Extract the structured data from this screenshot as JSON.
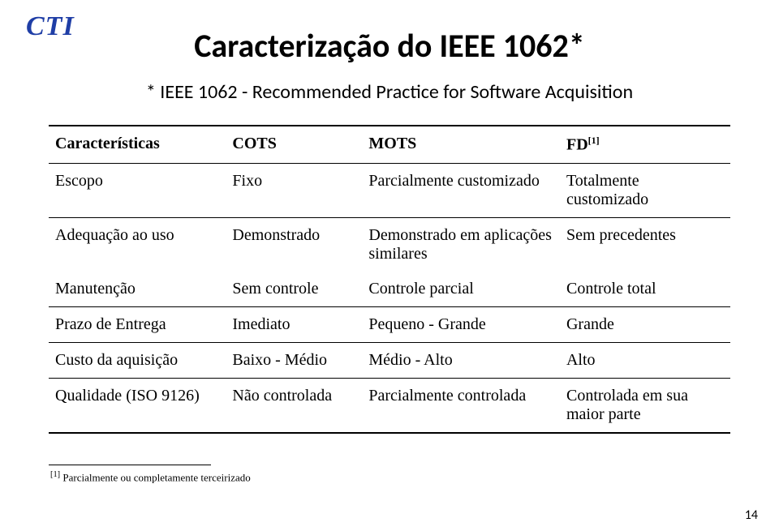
{
  "logo": "CTI",
  "title": "Caracterização do IEEE 1062*",
  "subtitle": "* IEEE 1062 - Recommended Practice for Software Acquisition",
  "table": {
    "columns": [
      "Características",
      "COTS",
      "MOTS",
      "FD"
    ],
    "header_sup": "[1]",
    "rows": [
      [
        "Escopo",
        "Fixo",
        "Parcialmente customizado",
        "Totalmente customizado"
      ],
      [
        "Adequação ao uso",
        "Demonstrado",
        "Demonstrado em aplicações similares",
        "Sem precedentes"
      ],
      [
        "Manutenção",
        "Sem controle",
        "Controle parcial",
        "Controle total"
      ],
      [
        "Prazo de Entrega",
        "Imediato",
        "Pequeno - Grande",
        "Grande"
      ],
      [
        "Custo da aquisição",
        "Baixo - Médio",
        "Médio - Alto",
        "Alto"
      ],
      [
        "Qualidade (ISO 9126)",
        "Não controlada",
        "Parcialmente controlada",
        "Controlada em sua maior parte"
      ]
    ],
    "section_starts": [
      0,
      1,
      3,
      4,
      5
    ],
    "col_widths": [
      "26%",
      "20%",
      "29%",
      "25%"
    ]
  },
  "footnote": {
    "sup": "[1]",
    "text": " Parcialmente ou completamente terceirizado"
  },
  "page_number": "14",
  "colors": {
    "logo": "#1f3ea6",
    "text": "#000000",
    "background": "#ffffff",
    "rule": "#000000"
  },
  "fonts": {
    "title_size": 40,
    "subtitle_size": 24,
    "cell_size": 20,
    "footnote_size": 13,
    "logo_size": 34
  }
}
